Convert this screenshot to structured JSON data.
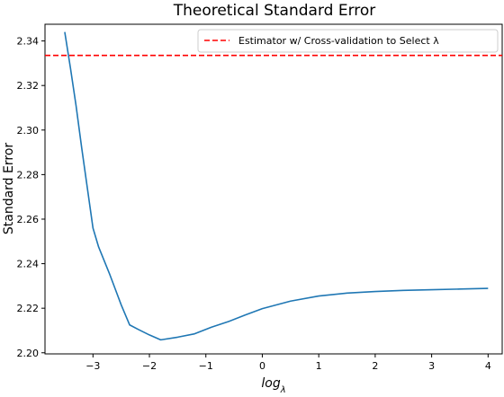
{
  "chart_data": {
    "type": "line",
    "title": "Theoretical Standard Error",
    "xlabel": "log",
    "xlabel_subscript": "λ",
    "ylabel": "Standard Error",
    "xlim": [
      -3.85,
      4.25
    ],
    "ylim": [
      2.1995,
      2.3475
    ],
    "xticks": [
      -3,
      -2,
      -1,
      0,
      1,
      2,
      3,
      4
    ],
    "xtick_labels": [
      "−3",
      "−2",
      "−1",
      "0",
      "1",
      "2",
      "3",
      "4"
    ],
    "yticks": [
      2.2,
      2.22,
      2.24,
      2.26,
      2.28,
      2.3,
      2.32,
      2.34
    ],
    "ytick_labels": [
      "2.20",
      "2.22",
      "2.24",
      "2.26",
      "2.28",
      "2.30",
      "2.32",
      "2.34"
    ],
    "grid": false,
    "legend_position": "top-right",
    "series": [
      {
        "color": "#1f77b4",
        "style": "solid",
        "x": [
          -3.5,
          -3.4,
          -3.3,
          -3.2,
          -3.1,
          -3.0,
          -2.9,
          -2.7,
          -2.5,
          -2.35,
          -2.2,
          -2.0,
          -1.8,
          -1.5,
          -1.2,
          -0.9,
          -0.6,
          -0.3,
          0.0,
          0.5,
          1.0,
          1.5,
          2.0,
          2.5,
          3.0,
          3.5,
          4.0
        ],
        "y": [
          2.344,
          2.328,
          2.311,
          2.292,
          2.274,
          2.256,
          2.2475,
          2.235,
          2.2215,
          2.2125,
          2.2105,
          2.208,
          2.2058,
          2.207,
          2.2085,
          2.2115,
          2.214,
          2.217,
          2.2198,
          2.2232,
          2.2255,
          2.2268,
          2.2275,
          2.228,
          2.2283,
          2.2286,
          2.2289
        ]
      },
      {
        "name": "Estimator w/ Cross-validation to Select λ",
        "color": "#ff0000",
        "style": "dashed",
        "horizontal_line": 2.3335
      }
    ]
  }
}
